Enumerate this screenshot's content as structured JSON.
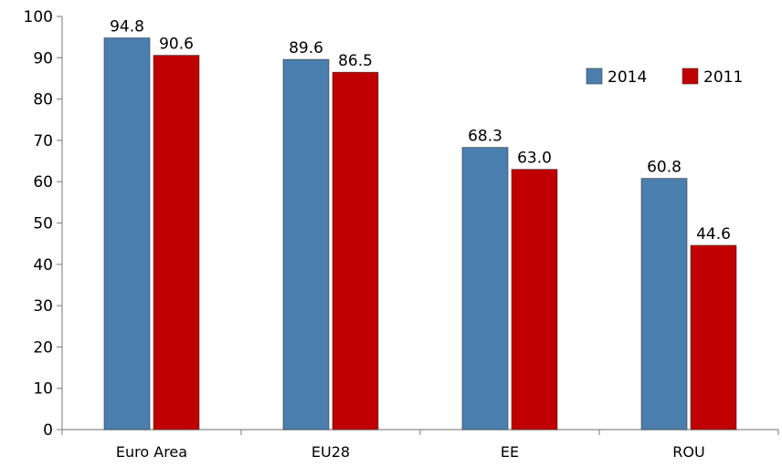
{
  "chart_data": {
    "type": "bar",
    "categories": [
      "Euro Area",
      "EU28",
      "EE",
      "ROU"
    ],
    "series": [
      {
        "name": "2014",
        "values": [
          94.8,
          89.6,
          68.3,
          60.8
        ],
        "color": "#4a7eaf",
        "labels": [
          "94.8",
          "89.6",
          "68.3",
          "60.8"
        ]
      },
      {
        "name": "2011",
        "values": [
          90.6,
          86.5,
          63.0,
          44.6
        ],
        "color": "#c00000",
        "labels": [
          "90.6",
          "86.5",
          "63.0",
          "44.6"
        ]
      }
    ],
    "ylim": [
      0,
      100
    ],
    "yticks": [
      "0",
      "10",
      "20",
      "30",
      "40",
      "50",
      "60",
      "70",
      "80",
      "90",
      "100"
    ],
    "grid": false,
    "legend": "top-right",
    "title": "",
    "xlabel": "",
    "ylabel": ""
  }
}
